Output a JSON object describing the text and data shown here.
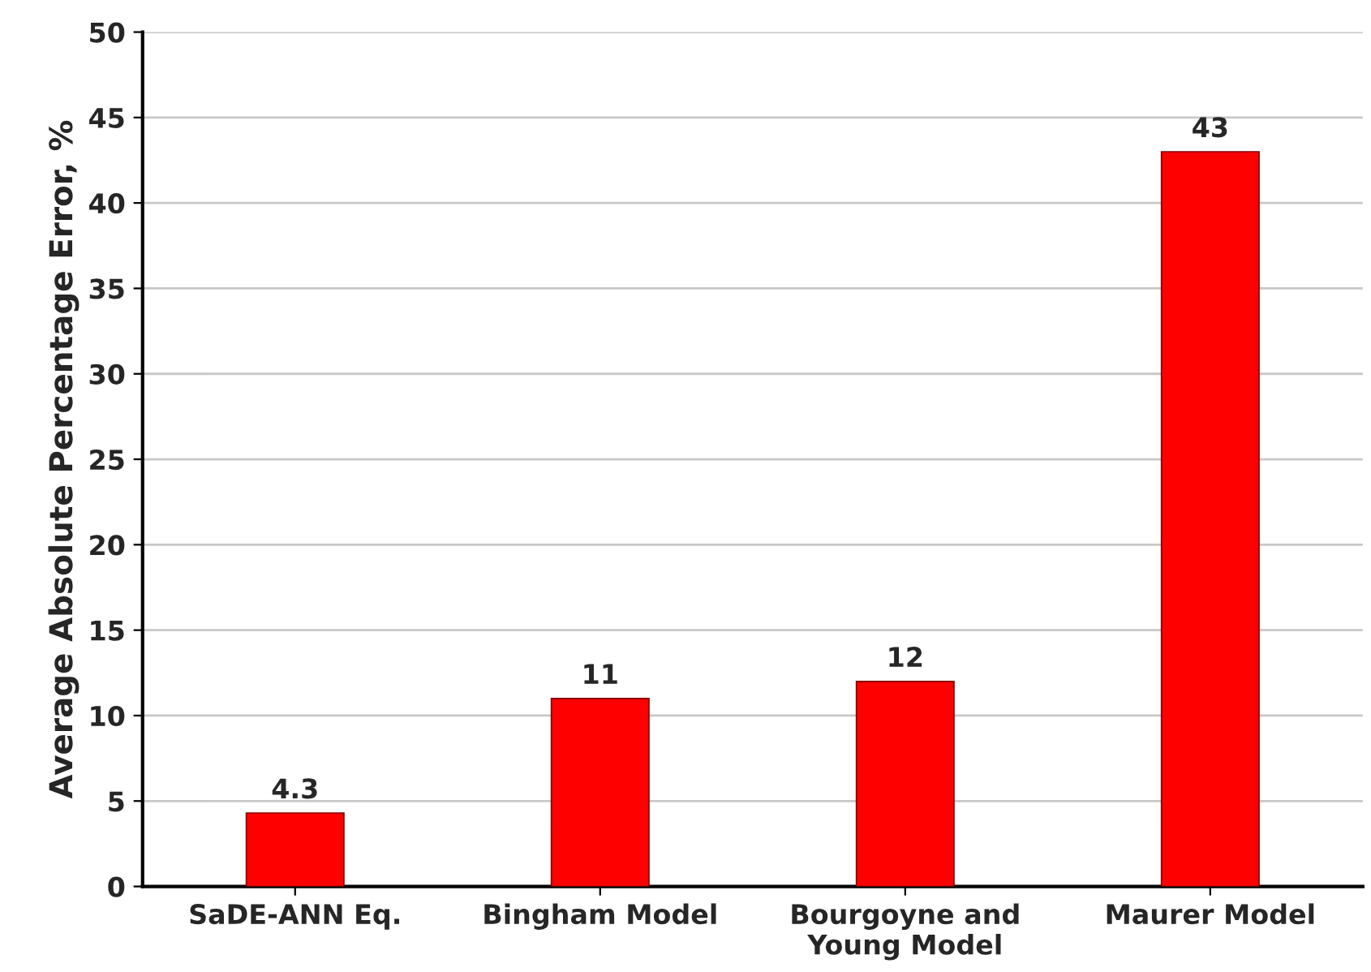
{
  "chart_data": {
    "type": "bar",
    "ylabel": "Average Absolute Percentage Error, %",
    "categories": [
      "SaDE-ANN Eq.",
      "Bingham Model",
      "Bourgoyne and\nYoung Model",
      "Maurer Model"
    ],
    "values": [
      4.3,
      11,
      12,
      43
    ],
    "color": "#ff0000",
    "ylim": [
      0,
      50
    ],
    "yticks": [
      0,
      5,
      10,
      15,
      20,
      25,
      30,
      35,
      40,
      45,
      50
    ],
    "grid": "y",
    "data_labels": true
  }
}
